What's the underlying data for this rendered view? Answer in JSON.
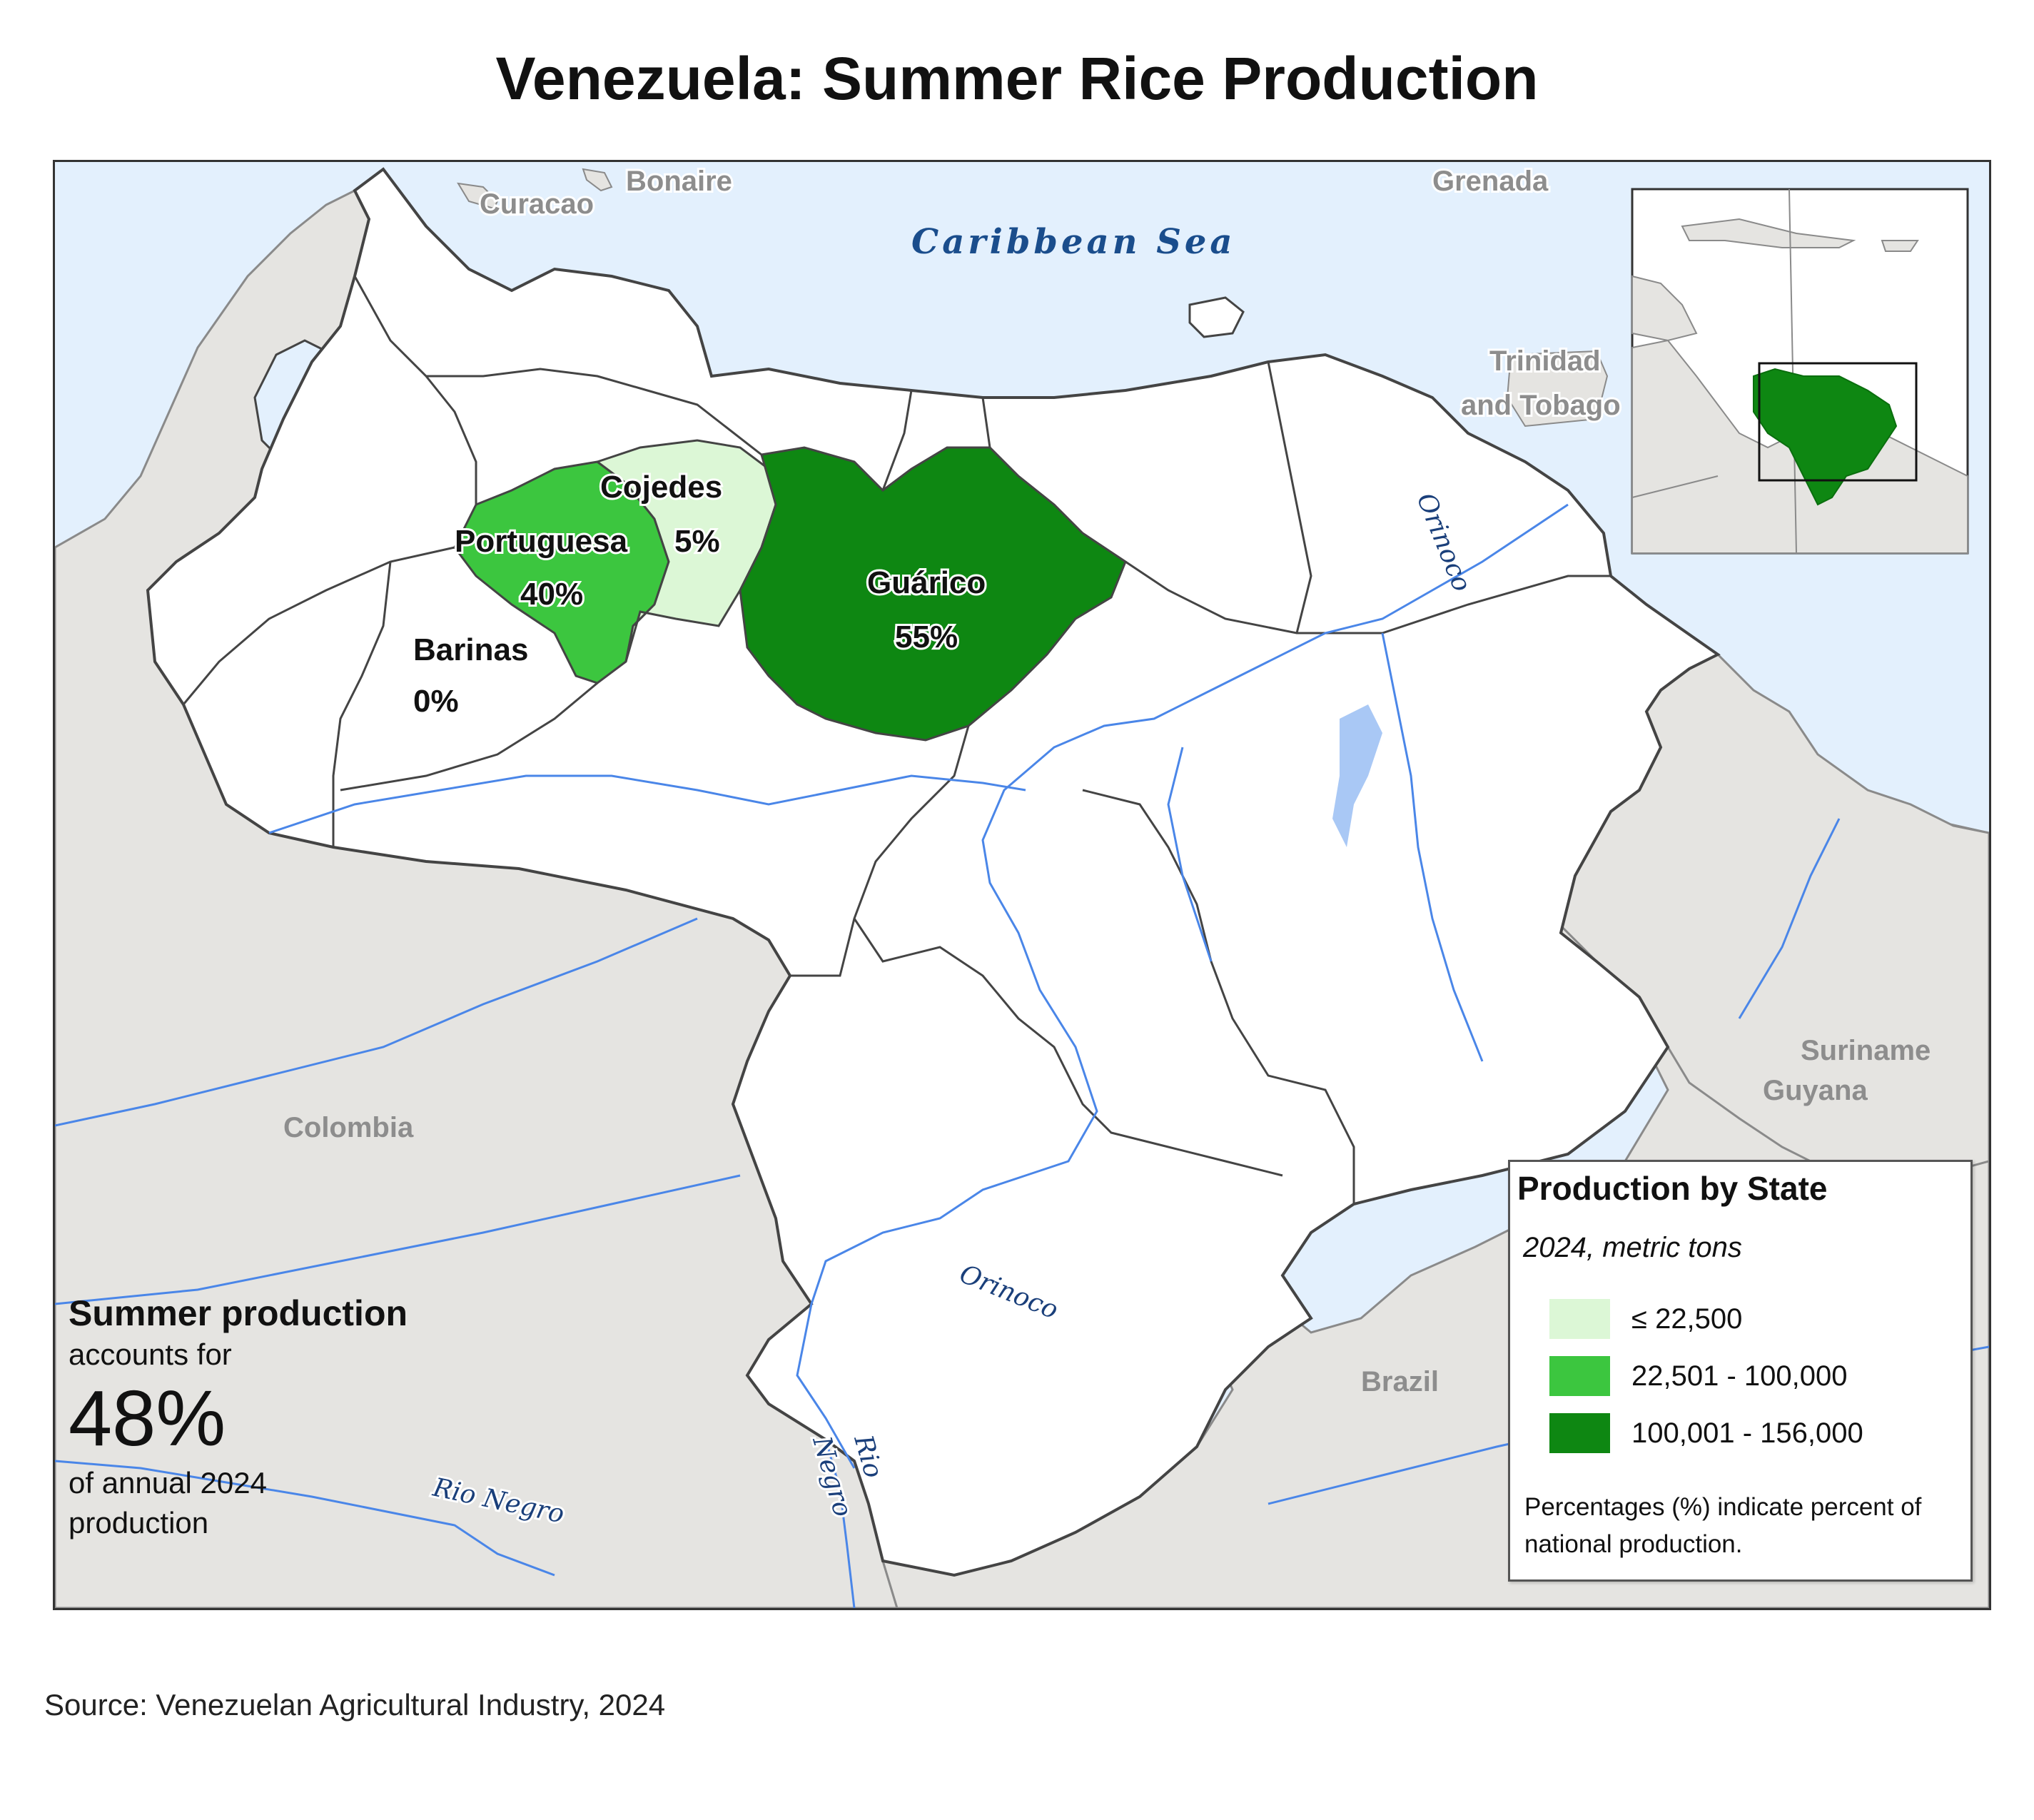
{
  "title": "Venezuela: Summer Rice Production",
  "map": {
    "sea_label": "Caribbean Sea",
    "place_labels": {
      "curacao": "Curacao",
      "bonaire": "Bonaire",
      "grenada": "Grenada",
      "trinidad_line1": "Trinidad",
      "trinidad_line2": "and Tobago",
      "colombia": "Colombia",
      "brazil": "Brazil",
      "suriname": "Suriname",
      "guyana": "Guyana"
    },
    "river_labels": {
      "orinoco_north": "Orinoco",
      "orinoco_south": "Orinoco",
      "rio_negro_west": "Rio Negro",
      "rio_negro_south_line1": "Rio",
      "rio_negro_south_line2": "Negro"
    },
    "states": [
      {
        "name": "Portuguesa",
        "percent": "40%",
        "class": "22,501 - 100,000"
      },
      {
        "name": "Cojedes",
        "percent": "5%",
        "class": "≤ 22,500"
      },
      {
        "name": "Guárico",
        "percent": "55%",
        "class": "100,001 - 156,000"
      },
      {
        "name": "Barinas",
        "percent": "0%",
        "class": "none"
      }
    ]
  },
  "summary": {
    "heading": "Summer production",
    "line1": "accounts for",
    "big_value": "48%",
    "line2": "of annual 2024",
    "line3": "production"
  },
  "legend": {
    "title": "Production by State",
    "subtitle": "2024, metric tons",
    "items": [
      {
        "label": "≤ 22,500",
        "color": "#dcf7d6"
      },
      {
        "label": "22,501 - 100,000",
        "color": "#3cc63f"
      },
      {
        "label": "100,001 - 156,000",
        "color": "#0e8712"
      }
    ],
    "note": "Percentages (%) indicate percent of national production."
  },
  "colors": {
    "water": "#e3f0fd",
    "neighbor_land": "#e5e4e1",
    "venezuela_land": "#ffffff",
    "river": "#4a86e8",
    "border": "#444444"
  },
  "source": "Source: Venezuelan Agricultural Industry, 2024"
}
